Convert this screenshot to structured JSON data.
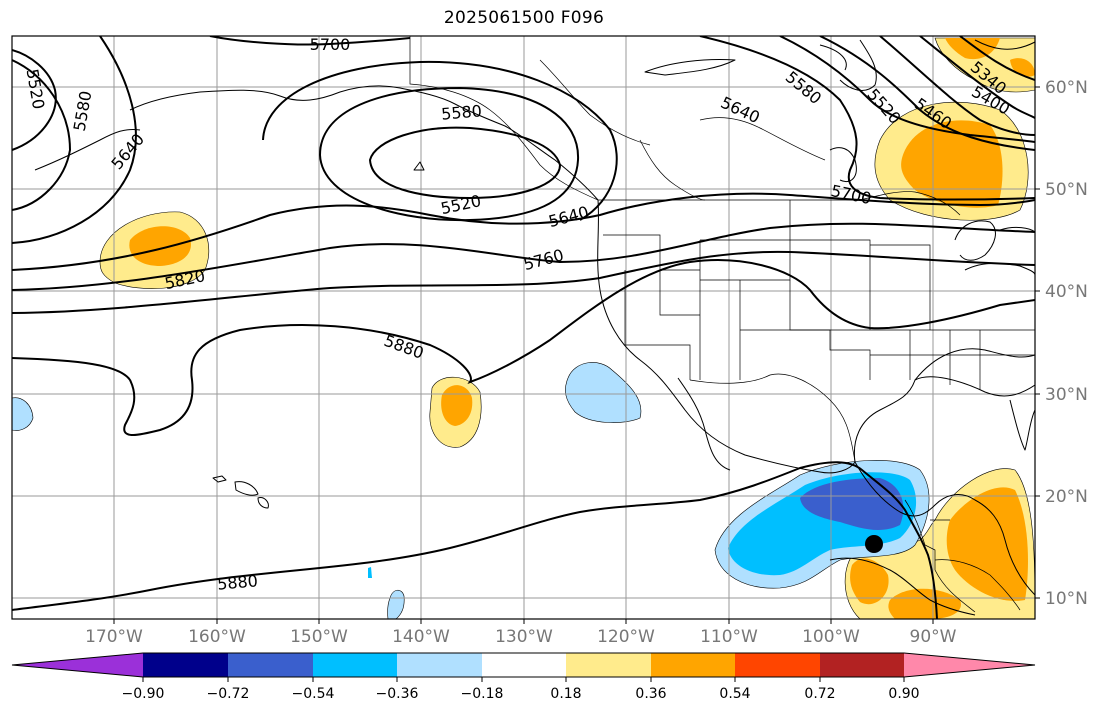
{
  "title": "2025061500 F096",
  "map": {
    "lat_labels": [
      "60°N",
      "50°N",
      "40°N",
      "30°N",
      "20°N",
      "10°N"
    ],
    "lon_labels": [
      "170°W",
      "160°W",
      "150°W",
      "140°W",
      "130°W",
      "120°W",
      "110°W",
      "100°W",
      "90°W"
    ],
    "contour_labels": [
      "5700",
      "5520",
      "5580",
      "5640",
      "5580",
      "5520",
      "5640",
      "5700",
      "5760",
      "5820",
      "5880",
      "5880",
      "5580",
      "5520",
      "5460",
      "5400",
      "5340",
      "5640"
    ],
    "colors": {
      "purple": "#9b30d9",
      "navy": "#00008b",
      "royal": "#3a5fcd",
      "deepsky": "#00bfff",
      "lightsky": "#b0e0ff",
      "white": "#ffffff",
      "yellow": "#ffeb8c",
      "orange": "#ffa500",
      "redorange": "#ff4500",
      "firebrick": "#b22222",
      "pink": "#ff88aa"
    }
  },
  "colorbar": {
    "ticks": [
      "−0.90",
      "−0.72",
      "−0.54",
      "−0.36",
      "−0.18",
      "0.18",
      "0.36",
      "0.54",
      "0.72",
      "0.90"
    ]
  }
}
